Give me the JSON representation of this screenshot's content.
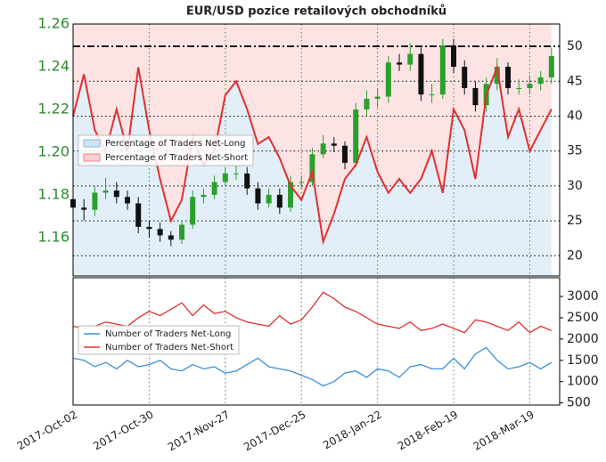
{
  "chart_data": [
    {
      "type": "candlestick",
      "title": "EUR/USD pozice retailových obchodníků",
      "x": [
        "2017-10-02",
        "2017-10-06",
        "2017-10-10",
        "2017-10-14",
        "2017-10-18",
        "2017-10-22",
        "2017-10-26",
        "2017-10-30",
        "2017-11-03",
        "2017-11-07",
        "2017-11-11",
        "2017-11-15",
        "2017-11-19",
        "2017-11-23",
        "2017-11-27",
        "2017-12-01",
        "2017-12-05",
        "2017-12-09",
        "2017-12-13",
        "2017-12-17",
        "2017-12-21",
        "2017-12-25",
        "2017-12-29",
        "2018-01-02",
        "2018-01-06",
        "2018-01-10",
        "2018-01-14",
        "2018-01-18",
        "2018-01-22",
        "2018-01-26",
        "2018-01-30",
        "2018-02-03",
        "2018-02-07",
        "2018-02-11",
        "2018-02-15",
        "2018-02-19",
        "2018-02-23",
        "2018-02-27",
        "2018-03-03",
        "2018-03-07",
        "2018-03-11",
        "2018-03-15",
        "2018-03-19",
        "2018-03-23",
        "2018-03-27"
      ],
      "open": [
        1.178,
        1.174,
        1.173,
        1.181,
        1.182,
        1.179,
        1.176,
        1.165,
        1.164,
        1.161,
        1.159,
        1.166,
        1.179,
        1.18,
        1.186,
        1.19,
        1.19,
        1.183,
        1.176,
        1.18,
        1.174,
        1.186,
        1.186,
        1.199,
        1.204,
        1.203,
        1.195,
        1.22,
        1.225,
        1.226,
        1.242,
        1.241,
        1.246,
        1.227,
        1.227,
        1.25,
        1.24,
        1.23,
        1.222,
        1.232,
        1.24,
        1.23,
        1.23,
        1.232,
        1.235
      ],
      "high": [
        1.181,
        1.178,
        1.184,
        1.188,
        1.186,
        1.182,
        1.179,
        1.168,
        1.167,
        1.163,
        1.168,
        1.182,
        1.183,
        1.189,
        1.193,
        1.194,
        1.193,
        1.186,
        1.183,
        1.183,
        1.189,
        1.189,
        1.202,
        1.208,
        1.207,
        1.205,
        1.223,
        1.229,
        1.23,
        1.245,
        1.246,
        1.251,
        1.249,
        1.232,
        1.253,
        1.253,
        1.243,
        1.233,
        1.235,
        1.244,
        1.242,
        1.234,
        1.236,
        1.238,
        1.249
      ],
      "low": [
        1.17,
        1.168,
        1.17,
        1.178,
        1.176,
        1.173,
        1.162,
        1.16,
        1.158,
        1.156,
        1.157,
        1.164,
        1.176,
        1.178,
        1.184,
        1.187,
        1.18,
        1.173,
        1.174,
        1.171,
        1.172,
        1.183,
        1.184,
        1.197,
        1.2,
        1.192,
        1.193,
        1.217,
        1.221,
        1.223,
        1.238,
        1.238,
        1.224,
        1.223,
        1.225,
        1.237,
        1.227,
        1.219,
        1.219,
        1.229,
        1.227,
        1.227,
        1.227,
        1.229,
        1.232
      ],
      "close": [
        1.174,
        1.173,
        1.181,
        1.182,
        1.179,
        1.176,
        1.165,
        1.164,
        1.161,
        1.159,
        1.166,
        1.179,
        1.18,
        1.186,
        1.19,
        1.19,
        1.183,
        1.176,
        1.18,
        1.174,
        1.186,
        1.186,
        1.199,
        1.204,
        1.203,
        1.195,
        1.22,
        1.225,
        1.226,
        1.242,
        1.241,
        1.246,
        1.227,
        1.227,
        1.25,
        1.24,
        1.23,
        1.222,
        1.232,
        1.24,
        1.23,
        1.23,
        1.232,
        1.235,
        1.245
      ],
      "up_color": "#2ca02c",
      "down_color": "#111111",
      "ylim": [
        1.142,
        1.26
      ],
      "yticks": [
        1.16,
        1.18,
        {
          "value": 1.2,
          "label": "1.20"
        },
        1.22,
        1.24,
        1.26
      ],
      "y2lim": [
        17.1,
        53.2
      ],
      "y2ticks": [
        20,
        25,
        30,
        35,
        40,
        45,
        50
      ],
      "percent": {
        "color": "#e03030",
        "axis": "y2",
        "values": [
          40,
          46,
          38,
          35,
          41,
          35,
          47,
          38,
          31,
          25,
          28,
          37,
          33,
          35,
          43,
          45,
          41,
          36,
          37,
          34,
          30,
          28,
          32,
          22,
          26,
          31,
          33,
          37,
          32,
          29,
          31,
          29,
          31,
          35,
          29,
          41,
          38,
          31,
          43,
          47,
          37,
          41,
          35,
          38,
          41
        ]
      },
      "legend": [
        {
          "label": "Percentage of Traders Net-Long",
          "color": "#cfe4f5"
        },
        {
          "label": "Percentage of Traders Net-Short",
          "color": "#fbd0d0"
        }
      ]
    },
    {
      "type": "line",
      "series": [
        {
          "name": "Number of Traders Net-Long",
          "color": "#3a8fdc",
          "values": [
            1550,
            1500,
            1350,
            1450,
            1300,
            1500,
            1350,
            1400,
            1500,
            1300,
            1250,
            1400,
            1300,
            1350,
            1200,
            1250,
            1400,
            1550,
            1350,
            1300,
            1250,
            1150,
            1050,
            900,
            1000,
            1200,
            1250,
            1100,
            1300,
            1250,
            1100,
            1350,
            1400,
            1300,
            1300,
            1550,
            1300,
            1650,
            1800,
            1500,
            1300,
            1350,
            1450,
            1300,
            1450
          ]
        },
        {
          "name": "Number of Traders Net-Short",
          "color": "#e03030",
          "values": [
            2300,
            2250,
            2300,
            2400,
            2350,
            2300,
            2500,
            2650,
            2550,
            2700,
            2850,
            2550,
            2800,
            2600,
            2650,
            2500,
            2400,
            2350,
            2300,
            2550,
            2350,
            2450,
            2750,
            3100,
            2950,
            2750,
            2650,
            2500,
            2350,
            2300,
            2250,
            2400,
            2200,
            2250,
            2350,
            2250,
            2150,
            2450,
            2400,
            2300,
            2200,
            2400,
            2150,
            2300,
            2200
          ]
        }
      ],
      "ylim": [
        450,
        3440
      ],
      "yticks": [
        500,
        1000,
        1500,
        2000,
        2500,
        3000
      ],
      "xlim": [
        "2017-10-02",
        "2018-03-30"
      ],
      "xticks": [
        {
          "value": "2017-10-02",
          "label": "2017-Oct-02"
        },
        {
          "value": "2017-10-30",
          "label": "2017-Oct-30"
        },
        {
          "value": "2017-11-27",
          "label": "2017-Nov-27"
        },
        {
          "value": "2017-12-25",
          "label": "2017-Dec-25"
        },
        {
          "value": "2018-01-22",
          "label": "2018-Jan-22"
        },
        {
          "value": "2018-02-19",
          "label": "2018-Feb-19"
        },
        {
          "value": "2018-03-19",
          "label": "2018-Mar-19"
        }
      ]
    }
  ]
}
